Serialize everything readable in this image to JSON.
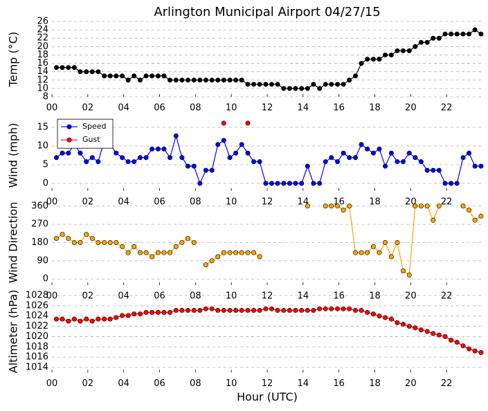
{
  "title": "Arlington Municipal Airport 04/27/15",
  "chart_data": [
    {
      "type": "line",
      "ylabel": "Temp (°C)",
      "x": [
        0.25,
        0.58,
        0.92,
        1.25,
        1.58,
        1.92,
        2.25,
        2.58,
        2.92,
        3.25,
        3.58,
        3.92,
        4.25,
        4.58,
        4.92,
        5.25,
        5.58,
        5.92,
        6.25,
        6.58,
        6.92,
        7.25,
        7.58,
        7.92,
        8.25,
        8.58,
        8.92,
        9.25,
        9.58,
        9.92,
        10.25,
        10.58,
        10.92,
        11.25,
        11.58,
        11.92,
        12.25,
        12.58,
        12.92,
        13.25,
        13.58,
        13.92,
        14.25,
        14.58,
        14.92,
        15.25,
        15.58,
        15.92,
        16.25,
        16.58,
        16.92,
        17.25,
        17.58,
        17.92,
        18.25,
        18.58,
        18.92,
        19.25,
        19.58,
        19.92,
        20.25,
        20.58,
        20.92,
        21.25,
        21.58,
        21.92,
        22.25,
        22.58,
        22.92,
        23.25,
        23.58,
        23.92
      ],
      "xlim": [
        0,
        24
      ],
      "xticks": [
        {
          "value": 0,
          "label": "00"
        },
        {
          "value": 2,
          "label": "02"
        },
        {
          "value": 4,
          "label": "04"
        },
        {
          "value": 6,
          "label": "06"
        },
        {
          "value": 8,
          "label": "08"
        },
        {
          "value": 10,
          "label": "10"
        },
        {
          "value": 12,
          "label": "12"
        },
        {
          "value": 14,
          "label": "14"
        },
        {
          "value": 16,
          "label": "16"
        },
        {
          "value": 18,
          "label": "18"
        },
        {
          "value": 20,
          "label": "20"
        },
        {
          "value": 22,
          "label": "22"
        }
      ],
      "ylim": [
        8,
        26
      ],
      "yticks": [
        8,
        10,
        12,
        14,
        16,
        18,
        20,
        22,
        24,
        26
      ],
      "grid": true,
      "series": [
        {
          "color": "#000000",
          "values": [
            15,
            15,
            15,
            15,
            14,
            14,
            14,
            14,
            13,
            13,
            13,
            13,
            12,
            13,
            12,
            13,
            13,
            13,
            13,
            12,
            12,
            12,
            12,
            12,
            12,
            12,
            12,
            12,
            12,
            12,
            12,
            12,
            11,
            11,
            11,
            11,
            11,
            11,
            10,
            10,
            10,
            10,
            10,
            11,
            10,
            11,
            11,
            11,
            11,
            12,
            13,
            16,
            17,
            17,
            17,
            18,
            18,
            19,
            19,
            19,
            20,
            21,
            21,
            22,
            22,
            23,
            23,
            23,
            23,
            23,
            24,
            23
          ]
        }
      ]
    },
    {
      "type": "line",
      "ylabel": "Wind (mph)",
      "x": [
        0.25,
        0.58,
        0.92,
        1.25,
        1.58,
        1.92,
        2.25,
        2.58,
        2.92,
        3.25,
        3.58,
        3.92,
        4.25,
        4.58,
        4.92,
        5.25,
        5.58,
        5.92,
        6.25,
        6.58,
        6.92,
        7.25,
        7.58,
        7.92,
        8.25,
        8.58,
        8.92,
        9.25,
        9.58,
        9.92,
        10.25,
        10.58,
        10.92,
        11.25,
        11.58,
        11.92,
        12.25,
        12.58,
        12.92,
        13.25,
        13.58,
        13.92,
        14.25,
        14.58,
        14.92,
        15.25,
        15.58,
        15.92,
        16.25,
        16.58,
        16.92,
        17.25,
        17.58,
        17.92,
        18.25,
        18.58,
        18.92,
        19.25,
        19.58,
        19.92,
        20.25,
        20.58,
        20.92,
        21.25,
        21.58,
        21.92,
        22.25,
        22.58,
        22.92,
        23.25,
        23.58,
        23.92
      ],
      "xlim": [
        0,
        24
      ],
      "xticks": [
        {
          "value": 0,
          "label": "00"
        },
        {
          "value": 2,
          "label": "02"
        },
        {
          "value": 4,
          "label": "04"
        },
        {
          "value": 6,
          "label": "06"
        },
        {
          "value": 8,
          "label": "08"
        },
        {
          "value": 10,
          "label": "10"
        },
        {
          "value": 12,
          "label": "12"
        },
        {
          "value": 14,
          "label": "14"
        },
        {
          "value": 16,
          "label": "16"
        },
        {
          "value": 18,
          "label": "18"
        },
        {
          "value": 20,
          "label": "20"
        },
        {
          "value": 22,
          "label": "22"
        }
      ],
      "ylim": [
        -2,
        17
      ],
      "yticks": [
        0,
        5,
        10,
        15
      ],
      "grid": true,
      "legend": "upper left",
      "series": [
        {
          "name": "Speed",
          "color": "#0000ff",
          "values": [
            6.9,
            8.1,
            8.1,
            10.4,
            8.1,
            5.8,
            6.9,
            5.8,
            11.5,
            10.4,
            8.1,
            6.9,
            5.8,
            5.8,
            6.9,
            6.9,
            9.2,
            9.2,
            9.2,
            6.9,
            12.7,
            6.9,
            4.6,
            4.6,
            0,
            3.5,
            3.5,
            10.4,
            11.5,
            6.9,
            8.1,
            10.4,
            8.1,
            5.8,
            5.8,
            0,
            0,
            0,
            0,
            0,
            0,
            0,
            4.6,
            0,
            0,
            5.8,
            6.9,
            5.8,
            8.1,
            6.9,
            6.9,
            10.4,
            9.2,
            8.1,
            9.2,
            4.6,
            8.1,
            5.8,
            5.8,
            8.1,
            6.9,
            5.8,
            3.5,
            3.5,
            3.5,
            0,
            0,
            0,
            6.9,
            8.1,
            4.6,
            4.6
          ]
        },
        {
          "name": "Gust",
          "color": "#ff0000",
          "values": [
            null,
            null,
            null,
            null,
            null,
            null,
            null,
            null,
            null,
            null,
            null,
            null,
            null,
            null,
            null,
            null,
            null,
            null,
            null,
            null,
            null,
            null,
            null,
            null,
            null,
            null,
            null,
            null,
            16.1,
            null,
            null,
            null,
            16.1,
            null,
            null,
            null,
            null,
            null,
            null,
            null,
            null,
            null,
            null,
            null,
            null,
            null,
            null,
            null,
            null,
            null,
            null,
            null,
            null,
            null,
            null,
            null,
            null,
            null,
            null,
            null,
            null,
            null,
            null,
            null,
            null,
            null,
            null,
            null,
            null,
            null,
            null,
            null
          ]
        }
      ]
    },
    {
      "type": "line",
      "ylabel": "Wind Direction",
      "x": [
        0.25,
        0.58,
        0.92,
        1.25,
        1.58,
        1.92,
        2.25,
        2.58,
        2.92,
        3.25,
        3.58,
        3.92,
        4.25,
        4.58,
        4.92,
        5.25,
        5.58,
        5.92,
        6.25,
        6.58,
        6.92,
        7.25,
        7.58,
        7.92,
        8.25,
        8.58,
        8.92,
        9.25,
        9.58,
        9.92,
        10.25,
        10.58,
        10.92,
        11.25,
        11.58,
        11.92,
        12.25,
        12.58,
        12.92,
        13.25,
        13.58,
        13.92,
        14.25,
        14.58,
        14.92,
        15.25,
        15.58,
        15.92,
        16.25,
        16.58,
        16.92,
        17.25,
        17.58,
        17.92,
        18.25,
        18.58,
        18.92,
        19.25,
        19.58,
        19.92,
        20.25,
        20.58,
        20.92,
        21.25,
        21.58,
        21.92,
        22.25,
        22.58,
        22.92,
        23.25,
        23.58,
        23.92
      ],
      "xlim": [
        0,
        24
      ],
      "xticks": [
        {
          "value": 0,
          "label": "00"
        },
        {
          "value": 2,
          "label": "02"
        },
        {
          "value": 4,
          "label": "04"
        },
        {
          "value": 6,
          "label": "06"
        },
        {
          "value": 8,
          "label": "08"
        },
        {
          "value": 10,
          "label": "10"
        },
        {
          "value": 12,
          "label": "12"
        },
        {
          "value": 14,
          "label": "14"
        },
        {
          "value": 16,
          "label": "16"
        },
        {
          "value": 18,
          "label": "18"
        },
        {
          "value": 20,
          "label": "20"
        },
        {
          "value": 22,
          "label": "22"
        }
      ],
      "ylim": [
        -30,
        390
      ],
      "yticks": [
        0,
        90,
        180,
        270,
        360
      ],
      "grid": true,
      "series": [
        {
          "color": "#ffa500",
          "values": [
            200,
            220,
            200,
            180,
            180,
            220,
            200,
            180,
            180,
            180,
            180,
            160,
            130,
            160,
            130,
            130,
            110,
            130,
            130,
            130,
            160,
            180,
            200,
            180,
            null,
            70,
            90,
            110,
            130,
            130,
            130,
            130,
            130,
            130,
            110,
            null,
            null,
            null,
            null,
            null,
            null,
            null,
            360,
            null,
            null,
            360,
            360,
            360,
            340,
            360,
            130,
            130,
            130,
            160,
            130,
            180,
            110,
            180,
            40,
            20,
            360,
            360,
            360,
            290,
            360,
            null,
            null,
            null,
            360,
            340,
            290,
            310
          ]
        }
      ]
    },
    {
      "type": "line",
      "ylabel": "Altimeter (hPa)",
      "xlabel": "Hour (UTC)",
      "x": [
        0.25,
        0.58,
        0.92,
        1.25,
        1.58,
        1.92,
        2.25,
        2.58,
        2.92,
        3.25,
        3.58,
        3.92,
        4.25,
        4.58,
        4.92,
        5.25,
        5.58,
        5.92,
        6.25,
        6.58,
        6.92,
        7.25,
        7.58,
        7.92,
        8.25,
        8.58,
        8.92,
        9.25,
        9.58,
        9.92,
        10.25,
        10.58,
        10.92,
        11.25,
        11.58,
        11.92,
        12.25,
        12.58,
        12.92,
        13.25,
        13.58,
        13.92,
        14.25,
        14.58,
        14.92,
        15.25,
        15.58,
        15.92,
        16.25,
        16.58,
        16.92,
        17.25,
        17.58,
        17.92,
        18.25,
        18.58,
        18.92,
        19.25,
        19.58,
        19.92,
        20.25,
        20.58,
        20.92,
        21.25,
        21.58,
        21.92,
        22.25,
        22.58,
        22.92,
        23.25,
        23.58,
        23.92
      ],
      "xlim": [
        0,
        24
      ],
      "xticks": [
        {
          "value": 0,
          "label": "00"
        },
        {
          "value": 2,
          "label": "02"
        },
        {
          "value": 4,
          "label": "04"
        },
        {
          "value": 6,
          "label": "06"
        },
        {
          "value": 8,
          "label": "08"
        },
        {
          "value": 10,
          "label": "10"
        },
        {
          "value": 12,
          "label": "12"
        },
        {
          "value": 14,
          "label": "14"
        },
        {
          "value": 16,
          "label": "16"
        },
        {
          "value": 18,
          "label": "18"
        },
        {
          "value": 20,
          "label": "20"
        },
        {
          "value": 22,
          "label": "22"
        }
      ],
      "ylim": [
        1013,
        1029
      ],
      "yticks": [
        1014,
        1016,
        1018,
        1020,
        1022,
        1024,
        1026,
        1028
      ],
      "grid": true,
      "series": [
        {
          "color": "#ff0000",
          "values": [
            1023.4,
            1023.4,
            1023.0,
            1023.4,
            1023.0,
            1023.4,
            1023.0,
            1023.4,
            1023.4,
            1023.4,
            1023.7,
            1024.1,
            1024.1,
            1024.4,
            1024.4,
            1024.7,
            1024.7,
            1024.7,
            1024.7,
            1024.7,
            1025.1,
            1025.1,
            1025.1,
            1025.1,
            1025.1,
            1025.4,
            1025.4,
            1025.1,
            1025.1,
            1025.1,
            1025.1,
            1025.1,
            1025.1,
            1025.1,
            1025.1,
            1025.4,
            1025.4,
            1025.1,
            1025.1,
            1025.1,
            1025.1,
            1025.1,
            1025.1,
            1025.1,
            1025.4,
            1025.4,
            1025.4,
            1025.4,
            1025.4,
            1025.4,
            1025.1,
            1025.1,
            1024.7,
            1024.4,
            1024.0,
            1023.7,
            1023.4,
            1022.7,
            1022.4,
            1022.0,
            1021.7,
            1021.3,
            1021.0,
            1020.6,
            1020.3,
            1020.0,
            1019.3,
            1018.9,
            1018.2,
            1017.6,
            1017.2,
            1016.9
          ]
        }
      ]
    }
  ]
}
